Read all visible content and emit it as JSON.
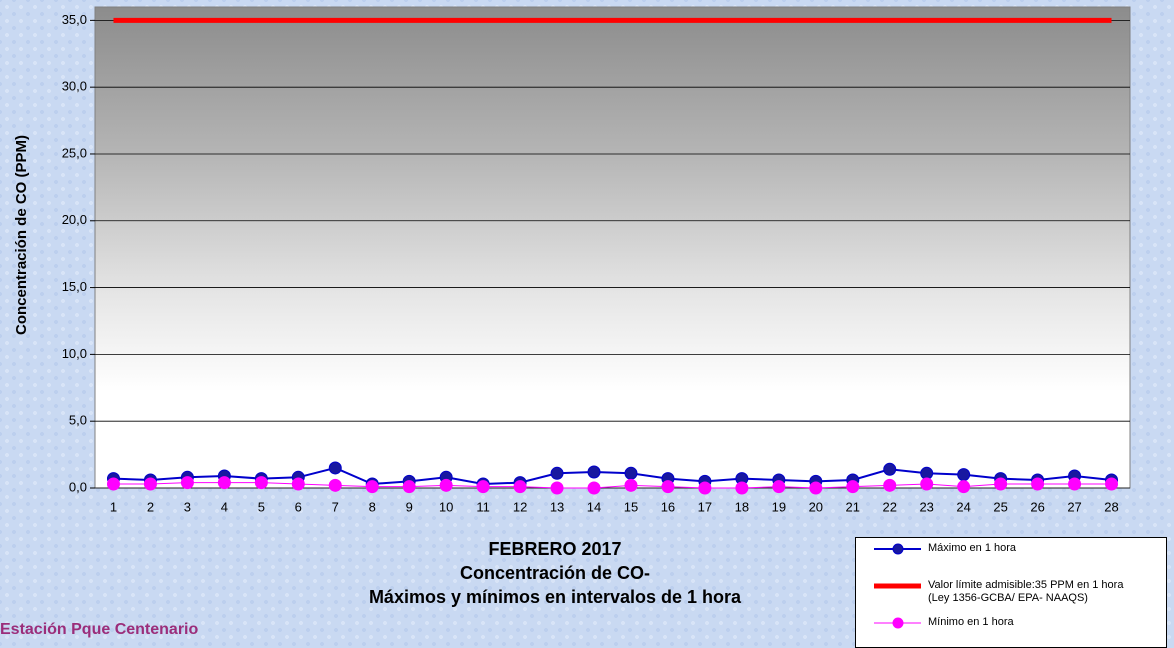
{
  "chart_data": {
    "type": "line",
    "title_lines": [
      "FEBRERO 2017",
      "Concentración de CO-",
      "Máximos y mínimos en intervalos de 1 hora"
    ],
    "annotation": "Estación Pque Centenario",
    "y_label": "Concentración de CO (PPM)",
    "categories": [
      "1",
      "2",
      "3",
      "4",
      "5",
      "6",
      "7",
      "8",
      "9",
      "10",
      "11",
      "12",
      "13",
      "14",
      "15",
      "16",
      "17",
      "18",
      "19",
      "20",
      "21",
      "22",
      "23",
      "24",
      "25",
      "26",
      "27",
      "28"
    ],
    "series": [
      {
        "name": "Máximo en 1 hora",
        "color": "#0000cc",
        "marker": "#1818a0",
        "width": 2,
        "values": [
          0.7,
          0.6,
          0.8,
          0.9,
          0.7,
          0.8,
          1.5,
          0.3,
          0.5,
          0.8,
          0.3,
          0.4,
          1.1,
          1.2,
          1.1,
          0.7,
          0.5,
          0.7,
          0.6,
          0.5,
          0.6,
          1.4,
          1.1,
          1.0,
          0.7,
          0.6,
          0.9,
          0.6
        ]
      },
      {
        "name": "Valor límite admisible:35 PPM en 1 hora\n(Ley 1356-GCBA/ EPA- NAAQS)",
        "color": "#ff0000",
        "width": 5,
        "values": [
          35,
          35,
          35,
          35,
          35,
          35,
          35,
          35,
          35,
          35,
          35,
          35,
          35,
          35,
          35,
          35,
          35,
          35,
          35,
          35,
          35,
          35,
          35,
          35,
          35,
          35,
          35,
          35
        ]
      },
      {
        "name": "Mínimo en 1 hora",
        "color": "#ff00ff",
        "marker": "#ff00ff",
        "width": 1,
        "values": [
          0.3,
          0.3,
          0.4,
          0.4,
          0.4,
          0.3,
          0.2,
          0.1,
          0.1,
          0.2,
          0.1,
          0.1,
          0.0,
          0.0,
          0.2,
          0.1,
          0.0,
          0.0,
          0.1,
          0.0,
          0.1,
          0.2,
          0.3,
          0.1,
          0.3,
          0.3,
          0.3,
          0.3
        ]
      }
    ],
    "ylim": [
      0,
      36
    ],
    "yticks": [
      {
        "value": 0,
        "label": "0,0"
      },
      {
        "value": 5,
        "label": "5,0"
      },
      {
        "value": 10,
        "label": "10,0"
      },
      {
        "value": 15,
        "label": "15,0"
      },
      {
        "value": 20,
        "label": "20,0"
      },
      {
        "value": 25,
        "label": "25,0"
      },
      {
        "value": 30,
        "label": "30,0"
      },
      {
        "value": 35,
        "label": "35,0"
      }
    ],
    "grid": true
  }
}
